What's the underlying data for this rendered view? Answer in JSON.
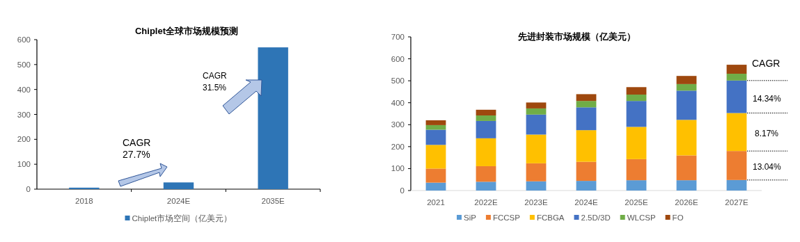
{
  "chart_data": [
    {
      "type": "bar",
      "title": "Chiplet全球市场规模预测",
      "categories": [
        "2018",
        "2024E",
        "2035E"
      ],
      "series": [
        {
          "name": "Chiplet市场空间（亿美元）",
          "color": "#2e75b6",
          "values": [
            6,
            27,
            569
          ]
        }
      ],
      "ylim": [
        0,
        600
      ],
      "yticks": [
        0,
        100,
        200,
        300,
        400,
        500,
        600
      ],
      "legend": "bottom",
      "annotations": [
        "CAGR 27.7%",
        "CAGR 31.5%"
      ]
    },
    {
      "type": "bar",
      "stacked": true,
      "title": "先进封装市场规模（亿美元）",
      "categories": [
        "2021",
        "2022E",
        "2023E",
        "2024E",
        "2025E",
        "2026E",
        "2027E"
      ],
      "series": [
        {
          "name": "SiP",
          "color": "#5b9bd5",
          "values": [
            36,
            40,
            42,
            44,
            47,
            47,
            48
          ]
        },
        {
          "name": "FCCSP",
          "color": "#ed7d31",
          "values": [
            64,
            71,
            82,
            87,
            96,
            113,
            132
          ]
        },
        {
          "name": "FCBGA",
          "color": "#ffc000",
          "values": [
            108,
            127,
            131,
            144,
            147,
            162,
            173
          ]
        },
        {
          "name": "2.5D/3D",
          "color": "#4472c4",
          "values": [
            69,
            79,
            91,
            104,
            118,
            133,
            148
          ]
        },
        {
          "name": "WLCSP",
          "color": "#70ad47",
          "values": [
            21,
            25,
            28,
            29,
            29,
            30,
            31
          ]
        },
        {
          "name": "FO",
          "color": "#9e480e",
          "values": [
            22,
            26,
            27,
            31,
            34,
            37,
            41
          ]
        }
      ],
      "ylim": [
        0,
        700
      ],
      "yticks": [
        0,
        100,
        200,
        300,
        400,
        500,
        600,
        700
      ],
      "legend": "bottom",
      "annotations": [
        "CAGR",
        "14.34%",
        "8.17%",
        "13.04%"
      ]
    }
  ]
}
